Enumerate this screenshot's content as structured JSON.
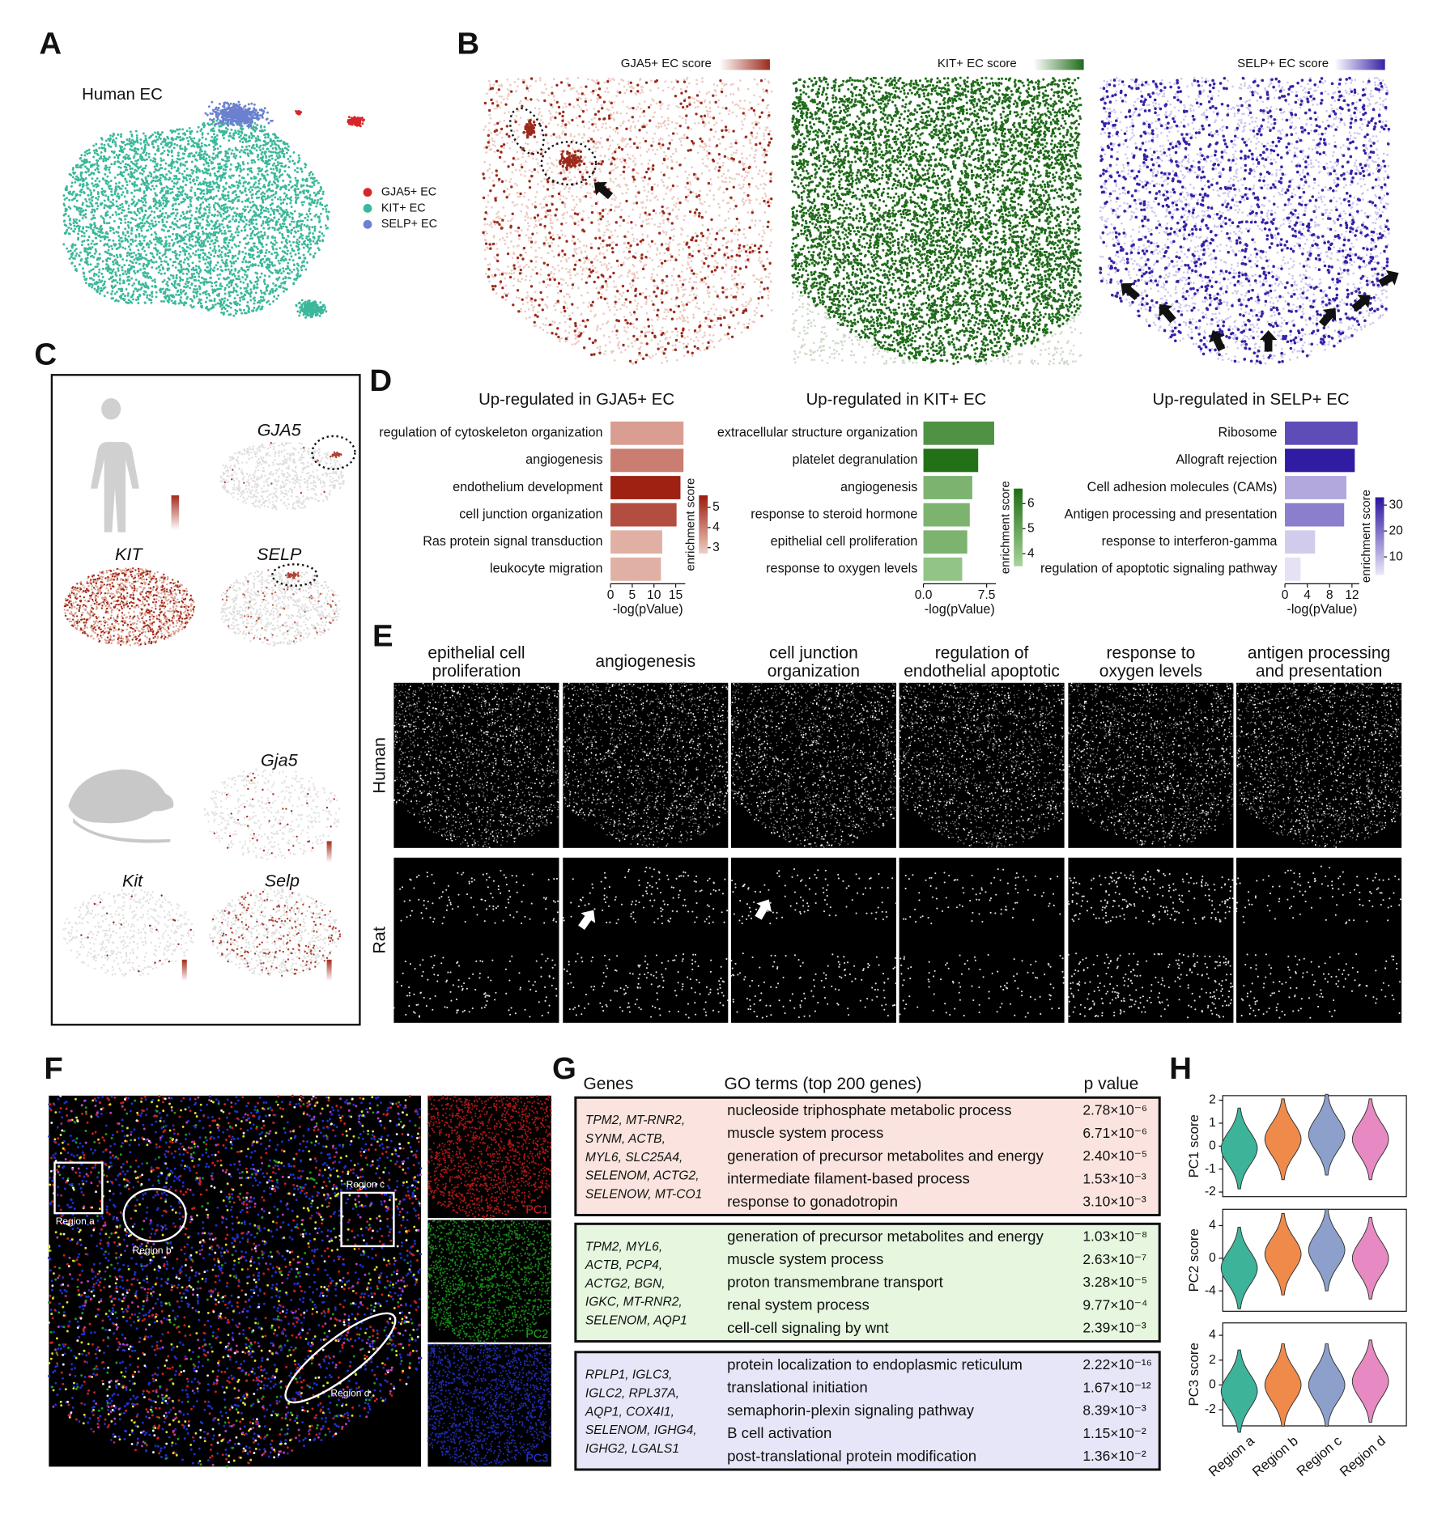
{
  "panel_labels": [
    "A",
    "B",
    "C",
    "D",
    "E",
    "F",
    "G",
    "H"
  ],
  "A": {
    "title": "Human EC",
    "legend": [
      {
        "name": "GJA5+ EC",
        "color": "#d7262b"
      },
      {
        "name": "KIT+ EC",
        "color": "#3bb89c"
      },
      {
        "name": "SELP+ EC",
        "color": "#6b80cf"
      }
    ]
  },
  "B": {
    "maps": [
      {
        "title": "GJA5+ EC score",
        "color": "#9c2a1c"
      },
      {
        "title": "KIT+ EC score",
        "color": "#1f6b1a"
      },
      {
        "title": "SELP+ EC score",
        "color": "#3522a6"
      }
    ]
  },
  "C": {
    "human_genes": [
      "GJA5",
      "KIT",
      "SELP"
    ],
    "rat_genes": [
      "Gja5",
      "Kit",
      "Selp"
    ]
  },
  "E": {
    "columns": [
      [
        "epithelial cell",
        "proliferation"
      ],
      [
        "angiogenesis"
      ],
      [
        "cell junction",
        "organization"
      ],
      [
        "regulation of",
        "endothelial apoptotic"
      ],
      [
        "response to",
        "oxygen levels"
      ],
      [
        "antigen processing",
        "and presentation"
      ]
    ],
    "rows": [
      "Human",
      "Rat"
    ]
  },
  "F": {
    "regions": [
      "Region a",
      "Region b",
      "Region c",
      "Region d"
    ],
    "channels": [
      {
        "name": "PC1",
        "color": "#e02020"
      },
      {
        "name": "PC2",
        "color": "#20b020"
      },
      {
        "name": "PC3",
        "color": "#2a3ae0"
      }
    ]
  },
  "G": {
    "headers": [
      "Genes",
      "GO terms (top 200 genes)",
      "p value"
    ],
    "groups": [
      {
        "color": "#fbe4df",
        "genes": [
          "TPM2, MT-RNR2,",
          "SYNM, ACTB,",
          "MYL6, SLC25A4,",
          "SELENOM, ACTG2,",
          "SELENOW, MT-CO1"
        ],
        "terms": [
          "nucleoside triphosphate metabolic process",
          "muscle system process",
          "generation of precursor metabolites and energy",
          "intermediate filament-based process",
          "response to gonadotropin"
        ],
        "p_values": [
          "2.78×10⁻⁶",
          "6.71×10⁻⁶",
          "2.40×10⁻⁵",
          "1.53×10⁻³",
          "3.10×10⁻³"
        ]
      },
      {
        "color": "#e6f6df",
        "genes": [
          "TPM2, MYL6,",
          "ACTB, PCP4,",
          "ACTG2, BGN,",
          "IGKC, MT-RNR2,",
          "SELENOM, AQP1"
        ],
        "terms": [
          "generation of precursor metabolites and energy",
          "muscle system process",
          "proton transmembrane transport",
          "renal system process",
          "cell-cell signaling by wnt"
        ],
        "p_values": [
          "1.03×10⁻⁸",
          "2.63×10⁻⁷",
          "3.28×10⁻⁵",
          "9.77×10⁻⁴",
          "2.39×10⁻³"
        ]
      },
      {
        "color": "#e6e6f8",
        "genes": [
          "RPLP1, IGLC3,",
          "IGLC2, RPL37A,",
          "AQP1, COX4I1,",
          "SELENOM, IGHG4,",
          "IGHG2, LGALS1"
        ],
        "terms": [
          "protein localization to endoplasmic reticulum",
          "translational initiation",
          "semaphorin-plexin signaling pathway",
          "B cell activation",
          "post-translational protein modification"
        ],
        "p_values": [
          "2.22×10⁻¹⁶",
          "1.67×10⁻¹²",
          "8.39×10⁻³",
          "1.15×10⁻²",
          "1.36×10⁻²"
        ]
      }
    ]
  },
  "chart_data": [
    {
      "type": "bar",
      "orientation": "horizontal",
      "title": "Up-regulated in GJA5+ EC",
      "categories": [
        "regulation of cytoskeleton organization",
        "angiogenesis",
        "endothelium development",
        "cell junction organization",
        "Ras protein signal transduction",
        "leukocyte migration"
      ],
      "values": [
        16.8,
        16.8,
        16.1,
        15.2,
        11.9,
        11.6
      ],
      "enrichment_scores": [
        3.5,
        4,
        5.5,
        4.8,
        3.2,
        3.2
      ],
      "xlim": [
        0,
        17.2
      ],
      "xticks": [
        0,
        5,
        10,
        15
      ],
      "xlabel": "-log(pValue)",
      "colorbar": {
        "label": "enrichment score",
        "lim": [
          2.7,
          5.6
        ],
        "ticks": [
          3,
          4,
          5
        ],
        "colors": [
          "#f0cfc4",
          "#9b1b0c"
        ]
      }
    },
    {
      "type": "bar",
      "orientation": "horizontal",
      "title": "Up-regulated in KIT+ EC",
      "categories": [
        "extracellular structure organization",
        "platelet degranulation",
        "angiogenesis",
        "response to steroid hormone",
        "epithelial cell proliferation",
        "response to oxygen levels"
      ],
      "values": [
        8.4,
        6.5,
        5.8,
        5.5,
        5.2,
        4.6
      ],
      "enrichment_scores": [
        5.5,
        6.5,
        4.5,
        4.5,
        4.5,
        4
      ],
      "xlim": [
        0,
        8.6
      ],
      "xticks": [
        {
          "value": 0,
          "label": "0.0"
        },
        7.5
      ],
      "xlabel": "-log(pValue)",
      "colorbar": {
        "label": "enrichment score",
        "lim": [
          3.5,
          6.6
        ],
        "ticks": [
          4,
          5,
          6
        ],
        "colors": [
          "#a8d49c",
          "#1f6e12"
        ]
      }
    },
    {
      "type": "bar",
      "orientation": "horizontal",
      "title": "Up-regulated in SELP+ EC",
      "categories": [
        "Ribosome",
        "Allograft rejection",
        "Cell adhesion molecules (CAMs)",
        "Antigen processing and presentation",
        "response to interferon-gamma",
        "regulation of apoptotic signaling pathway"
      ],
      "values": [
        13,
        12.5,
        11,
        10.6,
        5.4,
        2.8
      ],
      "enrichment_scores": [
        25,
        32,
        12,
        18,
        7,
        4
      ],
      "xlim": [
        0,
        13.3
      ],
      "xticks": [
        0,
        4,
        8,
        12
      ],
      "xlabel": "-log(pValue)",
      "colorbar": {
        "label": "enrichment score",
        "lim": [
          3,
          33
        ],
        "ticks": [
          10,
          20,
          30
        ],
        "colors": [
          "#ece8f8",
          "#2a14a0"
        ]
      }
    },
    {
      "type": "violin",
      "ylabel": "PC1 score",
      "colors": [
        "#3db39a",
        "#f08a4b",
        "#8da0cb",
        "#e78ac3"
      ],
      "values": [
        -0.1,
        0.3,
        0.5,
        0.3
      ],
      "ylim": [
        -2.2,
        2.2
      ],
      "yticks": [
        -2,
        -1,
        0,
        1,
        2
      ]
    },
    {
      "type": "violin",
      "ylabel": "PC2 score",
      "colors": [
        "#3db39a",
        "#f08a4b",
        "#8da0cb",
        "#e78ac3"
      ],
      "values": [
        -1.2,
        0.5,
        1,
        0
      ],
      "ylim": [
        -6.5,
        6
      ],
      "yticks": [
        -4,
        0,
        4
      ]
    },
    {
      "type": "violin",
      "ylabel": "PC3 score",
      "colors": [
        "#3db39a",
        "#f08a4b",
        "#8da0cb",
        "#e78ac3"
      ],
      "categories": [
        "Region a",
        "Region b",
        "Region c",
        "Region d"
      ],
      "values": [
        -0.5,
        0,
        0,
        0.3
      ],
      "ylim": [
        -3.3,
        5
      ],
      "yticks": [
        -2,
        0,
        2,
        4
      ]
    }
  ]
}
